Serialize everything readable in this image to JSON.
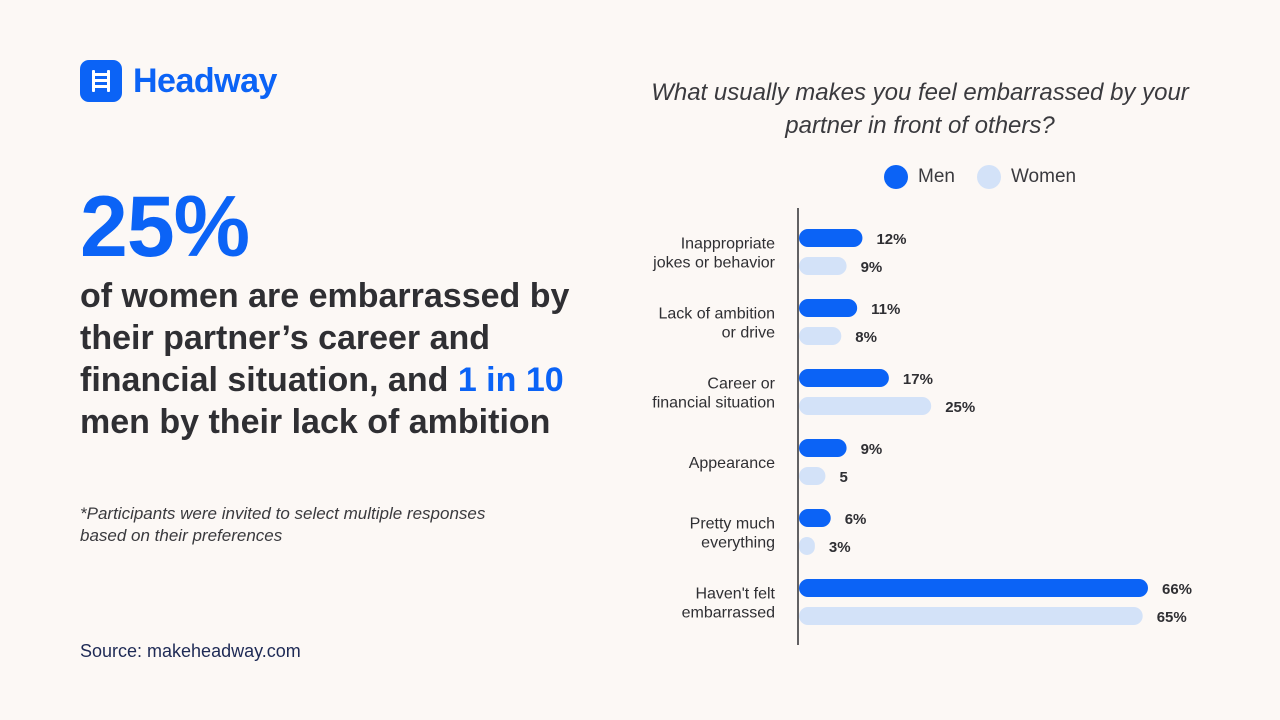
{
  "brand": {
    "name": "Headway",
    "icon": "ladder-icon"
  },
  "headline": {
    "stat": "25%",
    "text_before": "of women are embarrassed by their partner’s career and financial situation, and ",
    "highlight": "1 in 10",
    "text_after": " men by their lack of ambition"
  },
  "note": "*Participants were invited to select multiple responses based on their preferences",
  "source": "Source: makeheadway.com",
  "colors": {
    "background": "#fcf8f5",
    "men": "#0b63f6",
    "women": "#d3e2f8",
    "accent": "#0b63f6"
  },
  "chart_data": {
    "type": "bar",
    "orientation": "horizontal",
    "title": "What usually makes you feel embarrassed by your partner in front of others?",
    "legend_position": "top",
    "grid": false,
    "categories": [
      [
        "Inappropriate",
        "jokes or behavior"
      ],
      [
        "Lack of ambition",
        "or drive"
      ],
      [
        "Career or",
        "financial situation"
      ],
      [
        "Appearance"
      ],
      [
        "Pretty much",
        "everything"
      ],
      [
        "Haven't felt",
        "embarrassed"
      ]
    ],
    "series": [
      {
        "name": "Men",
        "values": [
          12,
          11,
          17,
          9,
          6,
          66
        ],
        "labels": [
          "12%",
          "11%",
          "17%",
          "9%",
          "6%",
          "66%"
        ]
      },
      {
        "name": "Women",
        "values": [
          9,
          8,
          25,
          5,
          3,
          65
        ],
        "labels": [
          "9%",
          "8%",
          "25%",
          "5",
          "3%",
          "65%"
        ]
      }
    ]
  }
}
